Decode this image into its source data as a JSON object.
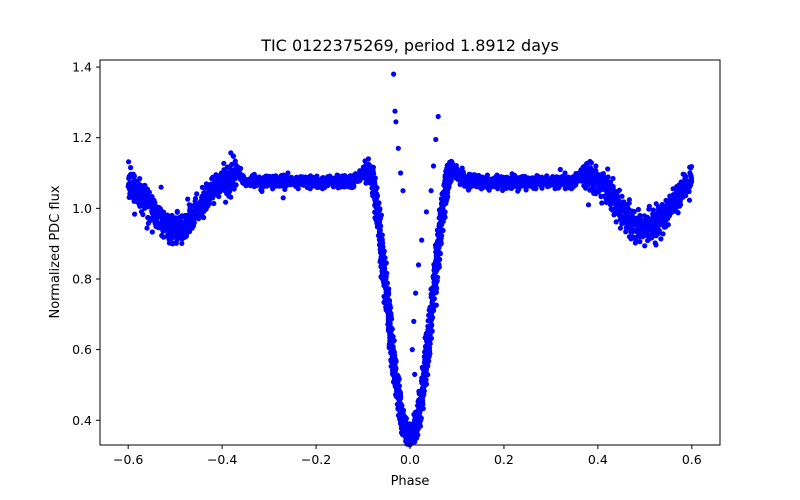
{
  "chart_data": {
    "type": "scatter",
    "title": "TIC 0122375269, period 1.8912 days",
    "xlabel": "Phase",
    "ylabel": "Normalized PDC flux",
    "xlim": [
      -0.66,
      0.66
    ],
    "ylim": [
      0.33,
      1.42
    ],
    "xticks": [
      -0.6,
      -0.4,
      -0.2,
      0.0,
      0.2,
      0.4,
      0.6
    ],
    "xtick_labels": [
      "−0.6",
      "−0.4",
      "−0.2",
      "0.0",
      "0.2",
      "0.4",
      "0.6"
    ],
    "yticks": [
      0.4,
      0.6,
      0.8,
      1.0,
      1.2,
      1.4
    ],
    "ytick_labels": [
      "0.4",
      "0.6",
      "0.8",
      "1.0",
      "1.2",
      "1.4"
    ],
    "marker_color": "#0000ff",
    "grid": false,
    "phase_range": [
      -0.6,
      0.6
    ],
    "baseline_flux": 1.075,
    "primary_eclipse": {
      "phase": 0.0,
      "min_flux": 0.35,
      "half_width": 0.085
    },
    "secondary_eclipses": [
      {
        "phase": -0.5,
        "min_flux": 0.94
      },
      {
        "phase": 0.5,
        "min_flux": 0.94
      }
    ],
    "outliers": [
      {
        "x": -0.035,
        "y": 1.38
      },
      {
        "x": -0.032,
        "y": 1.275
      },
      {
        "x": -0.03,
        "y": 1.245
      },
      {
        "x": -0.025,
        "y": 1.17
      },
      {
        "x": -0.02,
        "y": 1.1
      },
      {
        "x": -0.015,
        "y": 1.05
      },
      {
        "x": 0.06,
        "y": 1.26
      },
      {
        "x": 0.055,
        "y": 1.195
      },
      {
        "x": 0.05,
        "y": 1.12
      },
      {
        "x": 0.045,
        "y": 1.05
      },
      {
        "x": 0.035,
        "y": 0.99
      },
      {
        "x": 0.025,
        "y": 0.91
      },
      {
        "x": 0.018,
        "y": 0.84
      },
      {
        "x": 0.012,
        "y": 0.76
      },
      {
        "x": 0.008,
        "y": 0.68
      },
      {
        "x": 0.005,
        "y": 0.6
      },
      {
        "x": 0.01,
        "y": 0.53
      },
      {
        "x": -0.26,
        "y": 1.1
      },
      {
        "x": -0.27,
        "y": 1.03
      },
      {
        "x": 0.38,
        "y": 1.01
      },
      {
        "x": 0.33,
        "y": 1.1
      },
      {
        "x": 0.32,
        "y": 1.11
      },
      {
        "x": -0.42,
        "y": 1.03
      },
      {
        "x": -0.53,
        "y": 1.06
      }
    ]
  }
}
